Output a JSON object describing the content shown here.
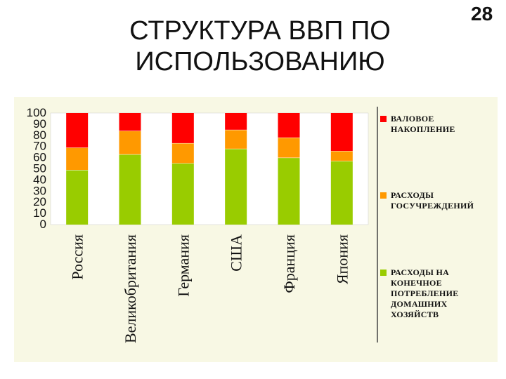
{
  "title_line1": "СТРУКТУРА ВВП ПО",
  "title_line2": "ИСПОЛЬЗОВАНИЮ",
  "page_number": "28",
  "chart_data": {
    "type": "bar",
    "stacked": true,
    "percent": true,
    "categories": [
      "Россия",
      "Великобритания",
      "Германия",
      "США",
      "Франция",
      "Япония"
    ],
    "series": [
      {
        "name": "РАСХОДЫ НА КОНЕЧНОЕ ПОТРЕБЛЕНИЕ ДОМАШНИХ ХОЗЯЙСТВ",
        "color": "#99cc00",
        "values": [
          49,
          63,
          55,
          68,
          60,
          57
        ]
      },
      {
        "name": "РАСХОДЫ ГОСУЧРЕЖДЕНИЙ",
        "color": "#ff9900",
        "values": [
          20,
          21,
          18,
          17,
          18,
          9
        ]
      },
      {
        "name": "ВАЛОВОЕ НАКОПЛЕНИЕ",
        "color": "#ff0000",
        "values": [
          31,
          16,
          27,
          15,
          22,
          34
        ]
      }
    ],
    "ylim": [
      0,
      100
    ],
    "yticks": [
      "0",
      "10",
      "20",
      "30",
      "40",
      "50",
      "60",
      "70",
      "80",
      "90",
      "100"
    ],
    "legend_position": "right",
    "grid": false
  }
}
